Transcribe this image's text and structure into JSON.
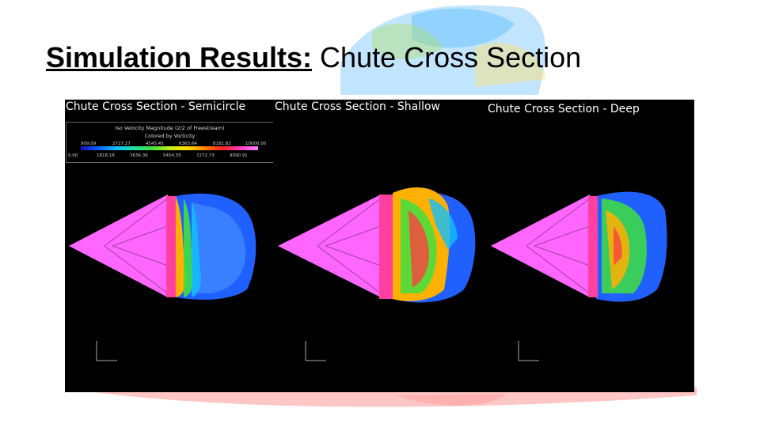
{
  "slide": {
    "title_bold": "Simulation Results:",
    "title_rest": " Chute Cross Section"
  },
  "panels": [
    {
      "title": "Chute Cross Section - Semicircle"
    },
    {
      "title": "Chute Cross Section - Shallow"
    },
    {
      "title": "Chute Cross Section - Deep"
    }
  ],
  "legend": {
    "heading": "Iso Velocity Magnitude (2/2 of Freestream)",
    "subheading": "Colored by Vorticity",
    "ticks_top": [
      "909.09",
      "2727.27",
      "4545.45",
      "6363.64",
      "8181.82",
      "10000.00"
    ],
    "ticks_bottom": [
      "0.00",
      "1818.18",
      "3636.36",
      "5454.55",
      "7272.73",
      "9090.91"
    ]
  },
  "colors": {
    "background": "#000000",
    "capsule": "#ff66ff",
    "wake_blue": "#2060ff"
  }
}
